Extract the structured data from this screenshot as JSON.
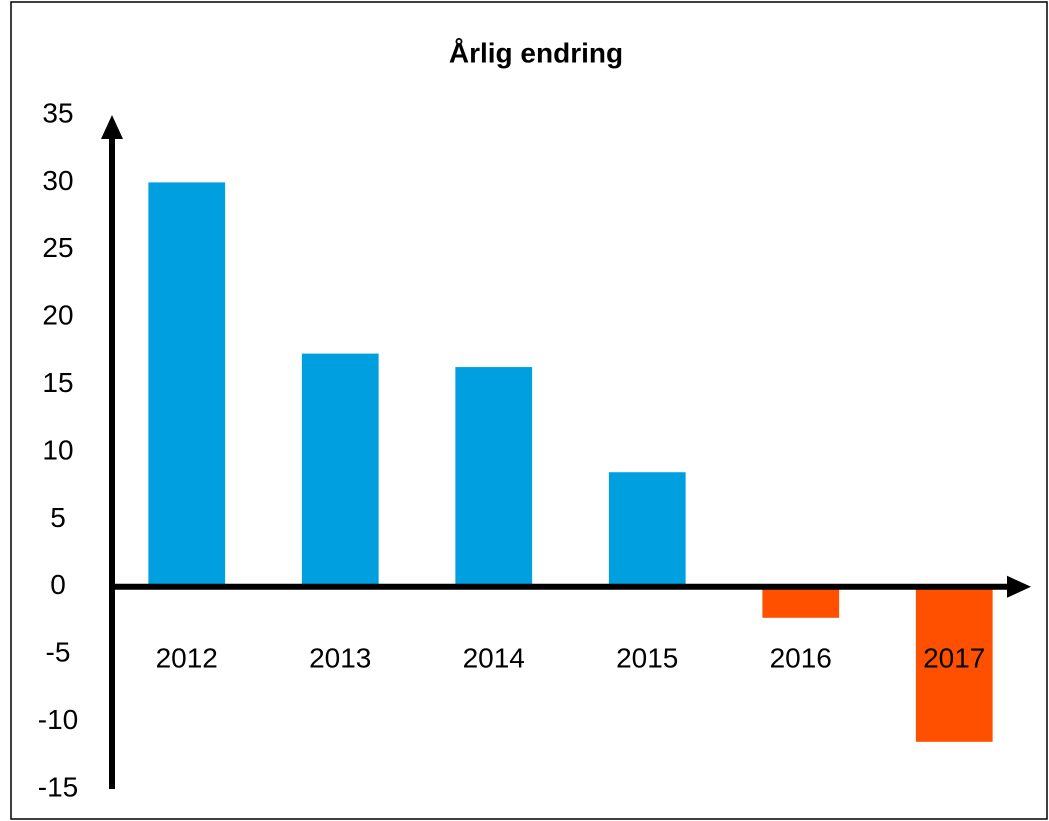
{
  "chart_data": {
    "type": "bar",
    "title": "Årlig endring",
    "categories": [
      "2012",
      "2013",
      "2014",
      "2015",
      "2016",
      "2017"
    ],
    "values": [
      30,
      17.3,
      16.3,
      8.5,
      -2.3,
      -11.5
    ],
    "colors": [
      "#009fdf",
      "#009fdf",
      "#009fdf",
      "#009fdf",
      "#ff5000",
      "#ff5000"
    ],
    "ylim": [
      -15,
      35
    ],
    "yticks": [
      -15,
      -10,
      -5,
      0,
      5,
      10,
      15,
      20,
      25,
      30,
      35
    ],
    "grid": false
  }
}
